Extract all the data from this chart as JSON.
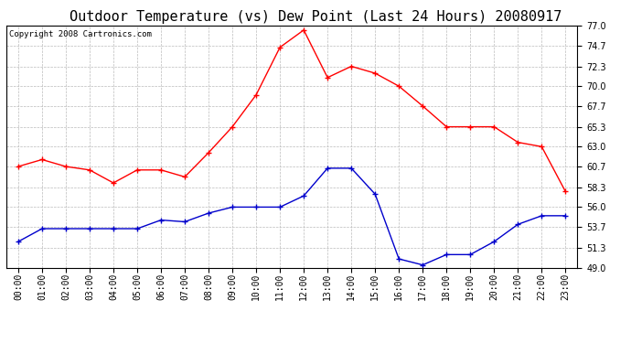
{
  "title": "Outdoor Temperature (vs) Dew Point (Last 24 Hours) 20080917",
  "copyright": "Copyright 2008 Cartronics.com",
  "hours": [
    "00:00",
    "01:00",
    "02:00",
    "03:00",
    "04:00",
    "05:00",
    "06:00",
    "07:00",
    "08:00",
    "09:00",
    "10:00",
    "11:00",
    "12:00",
    "13:00",
    "14:00",
    "15:00",
    "16:00",
    "17:00",
    "18:00",
    "19:00",
    "20:00",
    "21:00",
    "22:00",
    "23:00"
  ],
  "temp": [
    60.7,
    61.5,
    60.7,
    60.3,
    58.8,
    60.3,
    60.3,
    59.5,
    62.3,
    65.3,
    69.0,
    74.5,
    76.5,
    71.0,
    72.3,
    71.5,
    70.0,
    67.7,
    65.3,
    65.3,
    65.3,
    63.5,
    63.0,
    57.8
  ],
  "dew": [
    52.0,
    53.5,
    53.5,
    53.5,
    53.5,
    53.5,
    54.5,
    54.3,
    55.3,
    56.0,
    56.0,
    56.0,
    57.3,
    60.5,
    60.5,
    57.5,
    50.0,
    49.3,
    50.5,
    50.5,
    52.0,
    54.0,
    55.0,
    55.0
  ],
  "temp_color": "#ff0000",
  "dew_color": "#0000cc",
  "bg_color": "#ffffff",
  "plot_bg": "#ffffff",
  "grid_color": "#bbbbbb",
  "ylim": [
    49.0,
    77.0
  ],
  "yticks": [
    49.0,
    51.3,
    53.7,
    56.0,
    58.3,
    60.7,
    63.0,
    65.3,
    67.7,
    70.0,
    72.3,
    74.7,
    77.0
  ],
  "title_fontsize": 11,
  "copyright_fontsize": 6.5,
  "tick_fontsize": 7,
  "marker_size": 4
}
